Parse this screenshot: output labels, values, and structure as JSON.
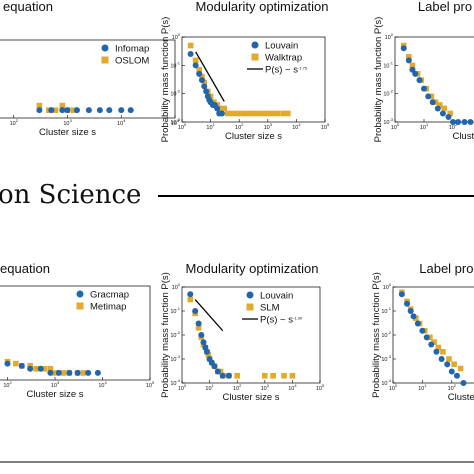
{
  "section_heading": "on Science",
  "colors": {
    "blue": "#2166ac",
    "orange": "#e3a92b",
    "line": "#000000"
  },
  "common": {
    "ylabel": "Probability mass function P(s)",
    "xlabel": "Cluster size s",
    "x_ticks": [
      "10^0",
      "10^1",
      "10^2",
      "10^3",
      "10^4",
      "10^5"
    ],
    "y_ticks": [
      "10^0",
      "10^-1",
      "10^-2",
      "10^-3",
      "10^-4"
    ]
  },
  "chart_data": [
    {
      "type": "scatter",
      "title": "equation",
      "xlabel": "Cluster size s",
      "ylabel": "",
      "xscale": "log",
      "yscale": "log",
      "x_ticks_shown": [
        "10^3",
        "10^4",
        "10^5"
      ],
      "legend": {
        "placement": "top-right",
        "entries": [
          "Infomap",
          "OSLOM"
        ]
      },
      "series": [
        {
          "name": "Infomap",
          "x": [
            300,
            500,
            800,
            1000,
            1500,
            2500,
            4000,
            6000,
            10000,
            15000
          ],
          "y": [
            0.002,
            0.002,
            0.002,
            0.002,
            0.002,
            0.002,
            0.002,
            0.002,
            0.002,
            0.002
          ]
        },
        {
          "name": "OSLOM",
          "x": [
            300,
            450,
            600,
            800,
            1000,
            1300
          ],
          "y": [
            0.003,
            0.002,
            0.002,
            0.003,
            0.002,
            0.002
          ]
        }
      ]
    },
    {
      "type": "scatter",
      "title": "Modularity optimization",
      "xlabel": "Cluster size s",
      "ylabel": "Probability mass function P(s)",
      "xscale": "log",
      "yscale": "log",
      "xlim": [
        1,
        100000
      ],
      "ylim": [
        0.001,
        1
      ],
      "legend": {
        "placement": "top-right",
        "entries": [
          "Louvain",
          "Walktrap",
          "P(s) ~ s^-1.75"
        ]
      },
      "series": [
        {
          "name": "Louvain",
          "x": [
            2,
            3,
            4,
            5,
            6,
            7,
            8,
            9,
            10,
            12,
            14,
            17,
            20,
            25
          ],
          "y": [
            0.25,
            0.1,
            0.05,
            0.03,
            0.018,
            0.012,
            0.008,
            0.006,
            0.005,
            0.004,
            0.004,
            0.003,
            0.002,
            0.002
          ]
        },
        {
          "name": "Walktrap",
          "x": [
            2,
            3,
            4,
            5,
            6,
            8,
            10,
            13,
            17,
            22,
            30,
            40,
            60,
            90,
            140,
            200,
            300,
            450,
            700,
            1000,
            1500,
            2200,
            3500,
            5000
          ],
          "y": [
            0.5,
            0.15,
            0.07,
            0.04,
            0.025,
            0.012,
            0.008,
            0.005,
            0.004,
            0.003,
            0.003,
            0.002,
            0.002,
            0.002,
            0.002,
            0.002,
            0.002,
            0.002,
            0.002,
            0.002,
            0.002,
            0.002,
            0.002,
            0.002
          ]
        }
      ],
      "fit": {
        "label": "P(s) ~ s^-1.75",
        "exponent": -1.75,
        "x_range": [
          3,
          30
        ],
        "y_at_start": 0.3
      }
    },
    {
      "type": "scatter",
      "title": "Label pro",
      "xlabel": "Cluster",
      "ylabel": "Probability mass function P(s)",
      "xscale": "log",
      "yscale": "log",
      "x_ticks_shown": [
        "10^0",
        "10^1",
        "10^2"
      ],
      "series": [
        {
          "name": "",
          "x": [
            2,
            3,
            4,
            5,
            7,
            10,
            14,
            20,
            30,
            45,
            70,
            100,
            150,
            250,
            400
          ],
          "y": [
            0.4,
            0.15,
            0.07,
            0.05,
            0.03,
            0.015,
            0.008,
            0.005,
            0.003,
            0.002,
            0.0015,
            0.001,
            0.001,
            0.001,
            0.001
          ]
        },
        {
          "name": "",
          "x": [
            2,
            3,
            4,
            6,
            8,
            12,
            18,
            25,
            35,
            50,
            80
          ],
          "y": [
            0.5,
            0.2,
            0.1,
            0.05,
            0.03,
            0.015,
            0.008,
            0.005,
            0.004,
            0.003,
            0.002
          ]
        }
      ]
    },
    {
      "type": "scatter",
      "title": "equation",
      "xlabel": "Cluster size s",
      "ylabel": "",
      "xscale": "log",
      "yscale": "log",
      "x_ticks_shown": [
        "10^3",
        "10^4",
        "10^5"
      ],
      "legend": {
        "placement": "top-right",
        "entries": [
          "Gracmap",
          "Metimap"
        ]
      },
      "series": [
        {
          "name": "Gracmap",
          "x": [
            100,
            200,
            300,
            500,
            800,
            1200,
            2000,
            3000,
            5000,
            8000
          ],
          "y": [
            0.0005,
            0.0004,
            0.0003,
            0.0003,
            0.0002,
            0.0002,
            0.0002,
            0.0002,
            0.0002,
            0.0002
          ]
        },
        {
          "name": "Metimap",
          "x": [
            100,
            150,
            200,
            300,
            400,
            600,
            800,
            1000,
            1500,
            2000,
            3000,
            4000
          ],
          "y": [
            0.0006,
            0.0005,
            0.0004,
            0.0004,
            0.0003,
            0.0003,
            0.0003,
            0.0002,
            0.0002,
            0.0002,
            0.0002,
            0.0002
          ]
        }
      ]
    },
    {
      "type": "scatter",
      "title": "Modularity optimization",
      "xlabel": "Cluster size s",
      "ylabel": "Probability mass function P(s)",
      "xscale": "log",
      "yscale": "log",
      "xlim": [
        1,
        100000
      ],
      "ylim": [
        0.0001,
        1
      ],
      "legend": {
        "placement": "top-right",
        "entries": [
          "Louvain",
          "SLM",
          "P(s) ~ s^-1.30"
        ]
      },
      "series": [
        {
          "name": "Louvain",
          "x": [
            2,
            3,
            4,
            5,
            6,
            7,
            8,
            10,
            12,
            15,
            20,
            30,
            50
          ],
          "y": [
            0.5,
            0.1,
            0.03,
            0.01,
            0.005,
            0.003,
            0.002,
            0.001,
            0.0007,
            0.0005,
            0.0003,
            0.0002,
            0.0002
          ]
        },
        {
          "name": "SLM",
          "x": [
            2,
            3,
            4,
            5,
            6,
            7,
            8,
            9,
            10,
            12,
            15,
            20,
            25,
            30,
            50,
            100,
            1000,
            2000,
            5000,
            10000
          ],
          "y": [
            0.3,
            0.08,
            0.02,
            0.008,
            0.004,
            0.003,
            0.002,
            0.0015,
            0.001,
            0.0007,
            0.0005,
            0.0003,
            0.0003,
            0.0002,
            0.0002,
            0.0002,
            0.0002,
            0.0002,
            0.0002,
            0.0002
          ]
        }
      ],
      "fit": {
        "label": "P(s) ~ s^-1.30",
        "exponent": -1.3,
        "x_range": [
          3,
          30
        ],
        "y_at_start": 0.3
      }
    },
    {
      "type": "scatter",
      "title": "Label prop",
      "xlabel": "Cluster s",
      "ylabel": "Probability mass function P(s)",
      "xscale": "log",
      "yscale": "log",
      "x_ticks_shown": [
        "10^0",
        "10^1",
        "10^2"
      ],
      "series": [
        {
          "name": "",
          "x": [
            2,
            3,
            4,
            5,
            7,
            10,
            14,
            20,
            30,
            45,
            70,
            100,
            150,
            250
          ],
          "y": [
            0.5,
            0.2,
            0.1,
            0.06,
            0.03,
            0.015,
            0.008,
            0.004,
            0.002,
            0.001,
            0.0006,
            0.0003,
            0.0002,
            0.0001
          ]
        },
        {
          "name": "",
          "x": [
            2,
            3,
            4,
            6,
            8,
            12,
            18,
            25,
            35,
            50,
            80,
            120,
            200
          ],
          "y": [
            0.6,
            0.25,
            0.12,
            0.05,
            0.03,
            0.015,
            0.008,
            0.005,
            0.003,
            0.002,
            0.001,
            0.0006,
            0.0004
          ]
        }
      ]
    }
  ]
}
